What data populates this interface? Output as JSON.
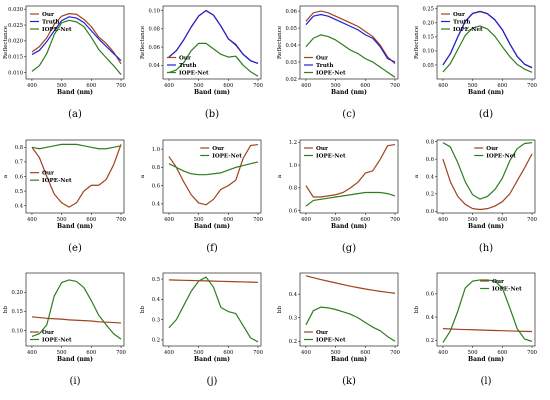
{
  "colors": {
    "our": "#a0421f",
    "truth": "#1d22d8",
    "iope": "#2e7d1e"
  },
  "chart_data": [
    {
      "type": "line",
      "caption": "(a)",
      "xlabel": "Band (nm)",
      "ylabel": "Reflectance",
      "xlim": [
        380,
        710
      ],
      "ylim": [
        0.008,
        0.031
      ],
      "xticks": [
        "400",
        "500",
        "600",
        "700"
      ],
      "yticks": [
        "0.010",
        "0.015",
        "0.020",
        "0.025",
        "0.030"
      ],
      "legend": "top-left",
      "x": [
        400,
        425,
        450,
        475,
        500,
        525,
        550,
        575,
        600,
        625,
        650,
        675,
        700
      ],
      "series": [
        {
          "name": "Our",
          "color": "our",
          "values": [
            0.0165,
            0.0182,
            0.021,
            0.0252,
            0.0278,
            0.0286,
            0.0284,
            0.0268,
            0.0245,
            0.0212,
            0.0192,
            0.0165,
            0.0128
          ]
        },
        {
          "name": "Truth",
          "color": "truth",
          "values": [
            0.0157,
            0.017,
            0.0198,
            0.0232,
            0.0264,
            0.0276,
            0.0272,
            0.0258,
            0.0232,
            0.0206,
            0.0183,
            0.016,
            0.0138
          ]
        },
        {
          "name": "IOPE-Net",
          "color": "iope",
          "values": [
            0.0104,
            0.0122,
            0.016,
            0.022,
            0.0257,
            0.0265,
            0.026,
            0.0245,
            0.0211,
            0.0173,
            0.0147,
            0.0122,
            0.0094
          ]
        }
      ]
    },
    {
      "type": "line",
      "caption": "(b)",
      "xlabel": "Band (nm)",
      "ylabel": "Reflectance",
      "xlim": [
        380,
        710
      ],
      "ylim": [
        0.025,
        0.105
      ],
      "xticks": [
        "400",
        "500",
        "600",
        "700"
      ],
      "yticks": [
        "0.04",
        "0.06",
        "0.08",
        "0.10"
      ],
      "legend": "bottom-left",
      "x": [
        400,
        425,
        450,
        475,
        500,
        525,
        550,
        575,
        600,
        625,
        650,
        675,
        700
      ],
      "series": [
        {
          "name": "Our",
          "color": "our",
          "values": [
            0.049,
            0.056,
            0.068,
            0.082,
            0.094,
            0.1,
            0.095,
            0.083,
            0.069,
            0.062,
            0.052,
            0.045,
            0.042
          ]
        },
        {
          "name": "Truth",
          "color": "truth",
          "values": [
            0.049,
            0.056,
            0.068,
            0.082,
            0.094,
            0.1,
            0.095,
            0.083,
            0.069,
            0.063,
            0.052,
            0.045,
            0.042
          ]
        },
        {
          "name": "IOPE-Net",
          "color": "iope",
          "values": [
            0.032,
            0.035,
            0.043,
            0.056,
            0.064,
            0.064,
            0.058,
            0.052,
            0.049,
            0.05,
            0.04,
            0.033,
            0.028
          ]
        }
      ]
    },
    {
      "type": "line",
      "caption": "(c)",
      "xlabel": "Band (nm)",
      "ylabel": "Reflectance",
      "xlim": [
        380,
        710
      ],
      "ylim": [
        0.02,
        0.063
      ],
      "xticks": [
        "400",
        "500",
        "600",
        "700"
      ],
      "yticks": [
        "0.02",
        "0.03",
        "0.04",
        "0.05",
        "0.06"
      ],
      "legend": "bottom-left",
      "x": [
        400,
        425,
        450,
        475,
        500,
        525,
        550,
        575,
        600,
        625,
        650,
        675,
        700
      ],
      "series": [
        {
          "name": "Our",
          "color": "our",
          "values": [
            0.054,
            0.059,
            0.06,
            0.059,
            0.057,
            0.055,
            0.053,
            0.051,
            0.048,
            0.045,
            0.04,
            0.033,
            0.029
          ]
        },
        {
          "name": "Truth",
          "color": "truth",
          "values": [
            0.052,
            0.057,
            0.058,
            0.057,
            0.055,
            0.053,
            0.051,
            0.049,
            0.046,
            0.044,
            0.039,
            0.032,
            0.03
          ]
        },
        {
          "name": "IOPE-Net",
          "color": "iope",
          "values": [
            0.039,
            0.044,
            0.046,
            0.045,
            0.043,
            0.04,
            0.037,
            0.035,
            0.032,
            0.03,
            0.027,
            0.024,
            0.021
          ]
        }
      ]
    },
    {
      "type": "line",
      "caption": "(d)",
      "xlabel": "Band (nm)",
      "ylabel": "Reflectance",
      "xlim": [
        380,
        710
      ],
      "ylim": [
        0.0,
        0.26
      ],
      "xticks": [
        "400",
        "500",
        "600",
        "700"
      ],
      "yticks": [
        "0.05",
        "0.10",
        "0.15",
        "0.20",
        "0.25"
      ],
      "legend": "top-left",
      "x": [
        400,
        425,
        450,
        475,
        500,
        525,
        550,
        575,
        600,
        625,
        650,
        675,
        700
      ],
      "series": [
        {
          "name": "Our",
          "color": "our",
          "values": [
            0.05,
            0.09,
            0.15,
            0.205,
            0.233,
            0.24,
            0.232,
            0.21,
            0.175,
            0.125,
            0.08,
            0.052,
            0.04
          ]
        },
        {
          "name": "Truth",
          "color": "truth",
          "values": [
            0.05,
            0.09,
            0.15,
            0.205,
            0.234,
            0.241,
            0.233,
            0.211,
            0.176,
            0.126,
            0.081,
            0.053,
            0.041
          ]
        },
        {
          "name": "IOPE-Net",
          "color": "iope",
          "values": [
            0.025,
            0.055,
            0.105,
            0.155,
            0.182,
            0.189,
            0.178,
            0.152,
            0.115,
            0.08,
            0.052,
            0.035,
            0.024
          ]
        }
      ]
    },
    {
      "type": "line",
      "caption": "(e)",
      "xlabel": "Band (nm)",
      "ylabel": "a",
      "xlim": [
        380,
        710
      ],
      "ylim": [
        0.35,
        0.85
      ],
      "xticks": [
        "400",
        "500",
        "600",
        "700"
      ],
      "yticks": [
        "0.4",
        "0.5",
        "0.6",
        "0.7",
        "0.8"
      ],
      "legend": "middle-left",
      "x": [
        400,
        425,
        450,
        475,
        500,
        525,
        550,
        575,
        600,
        625,
        650,
        675,
        700
      ],
      "series": [
        {
          "name": "Our",
          "color": "our",
          "values": [
            0.8,
            0.73,
            0.6,
            0.48,
            0.42,
            0.39,
            0.42,
            0.5,
            0.54,
            0.54,
            0.58,
            0.68,
            0.82
          ]
        },
        {
          "name": "IOPE-Net",
          "color": "iope",
          "values": [
            0.8,
            0.79,
            0.8,
            0.81,
            0.82,
            0.82,
            0.82,
            0.81,
            0.8,
            0.79,
            0.79,
            0.8,
            0.81
          ]
        }
      ]
    },
    {
      "type": "line",
      "caption": "(f)",
      "xlabel": "Band (nm)",
      "ylabel": "a",
      "xlim": [
        380,
        710
      ],
      "ylim": [
        0.3,
        1.1
      ],
      "xticks": [
        "400",
        "500",
        "600",
        "700"
      ],
      "yticks": [
        "0.4",
        "0.6",
        "0.8",
        "1.0"
      ],
      "legend": "top-center",
      "x": [
        400,
        425,
        450,
        475,
        500,
        525,
        550,
        575,
        600,
        625,
        650,
        675,
        700
      ],
      "series": [
        {
          "name": "Our",
          "color": "our",
          "values": [
            0.92,
            0.8,
            0.64,
            0.5,
            0.41,
            0.39,
            0.45,
            0.56,
            0.6,
            0.66,
            0.9,
            1.04,
            1.05
          ]
        },
        {
          "name": "IOPE-Net",
          "color": "iope",
          "values": [
            0.84,
            0.8,
            0.76,
            0.73,
            0.72,
            0.72,
            0.73,
            0.74,
            0.77,
            0.8,
            0.82,
            0.84,
            0.86
          ]
        }
      ]
    },
    {
      "type": "line",
      "caption": "(g)",
      "xlabel": "Band (nm)",
      "ylabel": "a",
      "xlim": [
        380,
        710
      ],
      "ylim": [
        0.58,
        1.22
      ],
      "xticks": [
        "400",
        "500",
        "600",
        "700"
      ],
      "yticks": [
        "0.6",
        "0.8",
        "1.0",
        "1.2"
      ],
      "legend": "top-left",
      "x": [
        400,
        425,
        450,
        475,
        500,
        525,
        550,
        575,
        600,
        625,
        650,
        675,
        700
      ],
      "series": [
        {
          "name": "Our",
          "color": "our",
          "values": [
            0.82,
            0.72,
            0.72,
            0.73,
            0.74,
            0.76,
            0.8,
            0.85,
            0.93,
            0.95,
            1.05,
            1.17,
            1.18
          ]
        },
        {
          "name": "IOPE-Net",
          "color": "iope",
          "values": [
            0.64,
            0.69,
            0.7,
            0.71,
            0.72,
            0.73,
            0.74,
            0.75,
            0.76,
            0.76,
            0.76,
            0.75,
            0.73
          ]
        }
      ]
    },
    {
      "type": "line",
      "caption": "(h)",
      "xlabel": "Band (nm)",
      "ylabel": "a",
      "xlim": [
        380,
        710
      ],
      "ylim": [
        -0.02,
        0.82
      ],
      "xticks": [
        "400",
        "500",
        "600",
        "700"
      ],
      "yticks": [
        "0.0",
        "0.2",
        "0.4",
        "0.6",
        "0.8"
      ],
      "legend": "top-center",
      "x": [
        400,
        425,
        450,
        475,
        500,
        525,
        550,
        575,
        600,
        625,
        650,
        675,
        700
      ],
      "series": [
        {
          "name": "Our",
          "color": "our",
          "values": [
            0.6,
            0.34,
            0.17,
            0.08,
            0.03,
            0.02,
            0.03,
            0.06,
            0.11,
            0.2,
            0.35,
            0.5,
            0.66
          ]
        },
        {
          "name": "IOPE-Net",
          "color": "iope",
          "values": [
            0.79,
            0.74,
            0.56,
            0.34,
            0.19,
            0.14,
            0.17,
            0.25,
            0.38,
            0.58,
            0.72,
            0.78,
            0.79
          ]
        }
      ]
    },
    {
      "type": "line",
      "caption": "(i)",
      "xlabel": "Band (nm)",
      "ylabel": "bb",
      "xlim": [
        380,
        710
      ],
      "ylim": [
        0.06,
        0.25
      ],
      "xticks": [
        "400",
        "500",
        "600",
        "700"
      ],
      "yticks": [
        "0.10",
        "0.15",
        "0.20"
      ],
      "legend": "bottom-left",
      "x": [
        400,
        425,
        450,
        475,
        500,
        525,
        550,
        575,
        600,
        625,
        650,
        675,
        700
      ],
      "series": [
        {
          "name": "Our",
          "color": "our",
          "values": [
            0.136,
            0.134,
            0.132,
            0.131,
            0.13,
            0.128,
            0.127,
            0.126,
            0.125,
            0.123,
            0.122,
            0.121,
            0.12
          ]
        },
        {
          "name": "IOPE-Net",
          "color": "iope",
          "values": [
            0.085,
            0.092,
            0.115,
            0.19,
            0.225,
            0.232,
            0.228,
            0.212,
            0.178,
            0.14,
            0.115,
            0.092,
            0.078
          ]
        }
      ]
    },
    {
      "type": "line",
      "caption": "(j)",
      "xlabel": "Band (nm)",
      "ylabel": "bb",
      "xlim": [
        380,
        710
      ],
      "ylim": [
        0.17,
        0.53
      ],
      "xticks": [
        "400",
        "500",
        "600",
        "700"
      ],
      "yticks": [
        "0.2",
        "0.3",
        "0.4",
        "0.5"
      ],
      "legend": "none",
      "x": [
        400,
        425,
        450,
        475,
        500,
        525,
        550,
        575,
        600,
        625,
        650,
        675,
        700
      ],
      "series": [
        {
          "name": "Our",
          "color": "our",
          "values": [
            0.496,
            0.495,
            0.494,
            0.493,
            0.492,
            0.491,
            0.49,
            0.489,
            0.488,
            0.487,
            0.486,
            0.485,
            0.484
          ]
        },
        {
          "name": "IOPE-Net",
          "color": "iope",
          "values": [
            0.26,
            0.3,
            0.37,
            0.44,
            0.49,
            0.51,
            0.46,
            0.36,
            0.34,
            0.33,
            0.27,
            0.21,
            0.19
          ]
        }
      ]
    },
    {
      "type": "line",
      "caption": "(k)",
      "xlabel": "Band (nm)",
      "ylabel": "bb",
      "xlim": [
        380,
        710
      ],
      "ylim": [
        0.18,
        0.49
      ],
      "xticks": [
        "400",
        "500",
        "600",
        "700"
      ],
      "yticks": [
        "0.2",
        "0.3",
        "0.4"
      ],
      "legend": "bottom-left",
      "x": [
        400,
        425,
        450,
        475,
        500,
        525,
        550,
        575,
        600,
        625,
        650,
        675,
        700
      ],
      "series": [
        {
          "name": "Our",
          "color": "our",
          "values": [
            0.478,
            0.47,
            0.462,
            0.455,
            0.448,
            0.441,
            0.434,
            0.428,
            0.422,
            0.417,
            0.412,
            0.408,
            0.404
          ]
        },
        {
          "name": "IOPE-Net",
          "color": "iope",
          "values": [
            0.27,
            0.33,
            0.345,
            0.342,
            0.335,
            0.325,
            0.315,
            0.3,
            0.28,
            0.26,
            0.245,
            0.22,
            0.2
          ]
        }
      ]
    },
    {
      "type": "line",
      "caption": "(l)",
      "xlabel": "Band (nm)",
      "ylabel": "bb",
      "xlim": [
        380,
        710
      ],
      "ylim": [
        0.15,
        0.78
      ],
      "xticks": [
        "400",
        "500",
        "600",
        "700"
      ],
      "yticks": [
        "0.2",
        "0.4",
        "0.6"
      ],
      "legend": "top-right",
      "x": [
        400,
        425,
        450,
        475,
        500,
        525,
        550,
        575,
        600,
        625,
        650,
        675,
        700
      ],
      "series": [
        {
          "name": "Our",
          "color": "our",
          "values": [
            0.3,
            0.297,
            0.294,
            0.292,
            0.29,
            0.288,
            0.286,
            0.284,
            0.282,
            0.28,
            0.278,
            0.276,
            0.275
          ]
        },
        {
          "name": "IOPE-Net",
          "color": "iope",
          "values": [
            0.18,
            0.28,
            0.45,
            0.65,
            0.71,
            0.72,
            0.72,
            0.71,
            0.65,
            0.48,
            0.3,
            0.21,
            0.19
          ]
        }
      ]
    }
  ]
}
